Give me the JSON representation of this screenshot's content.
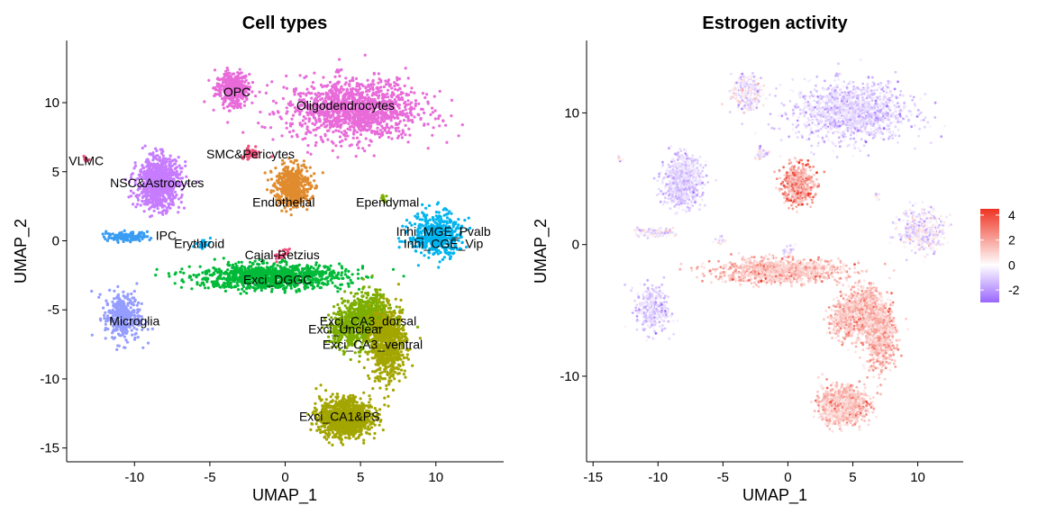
{
  "chart_data": [
    {
      "type": "scatter",
      "title": "Cell types",
      "xlabel": "UMAP_1",
      "ylabel": "UMAP_2",
      "xlim": [
        -14.5,
        14.5
      ],
      "ylim": [
        -16,
        14.5
      ],
      "xticks": [
        -10,
        -5,
        0,
        5,
        10
      ],
      "yticks": [
        -15,
        -10,
        -5,
        0,
        5,
        10
      ],
      "legend": "none",
      "grid": false,
      "clusters": [
        {
          "label": "OPC",
          "color": "#E86BD9",
          "x": -3.5,
          "y": 11.0,
          "sx": 1.0,
          "sy": 1.1,
          "n": 420,
          "lx": -3.2,
          "ly": 10.8
        },
        {
          "label": "Oligodendrocytes",
          "color": "#E86BD9",
          "x": 4.5,
          "y": 9.5,
          "sx": 4.0,
          "sy": 2.0,
          "n": 1300,
          "lx": 4.0,
          "ly": 9.8
        },
        {
          "label": "SMC&Pericytes",
          "color": "#F0527F",
          "x": -2.3,
          "y": 6.3,
          "sx": 0.6,
          "sy": 0.4,
          "n": 50,
          "lx": -2.3,
          "ly": 6.3
        },
        {
          "label": "VLMC",
          "color": "#F0527F",
          "x": -13.2,
          "y": 6.0,
          "sx": 0.2,
          "sy": 0.2,
          "n": 8,
          "lx": -13.2,
          "ly": 5.8
        },
        {
          "label": "NSC&Astrocytes",
          "color": "#C77CFF",
          "x": -8.4,
          "y": 4.2,
          "sx": 1.3,
          "sy": 1.6,
          "n": 900,
          "lx": -8.5,
          "ly": 4.2
        },
        {
          "label": "Endothelial",
          "color": "#E08B2E",
          "x": 0.5,
          "y": 4.0,
          "sx": 1.1,
          "sy": 1.4,
          "n": 480,
          "lx": -0.1,
          "ly": 2.8
        },
        {
          "label": "Ependymal",
          "color": "#7CAE00",
          "x": 6.5,
          "y": 3.0,
          "sx": 0.3,
          "sy": 0.3,
          "n": 10,
          "lx": 6.8,
          "ly": 2.8
        },
        {
          "label": "IPC",
          "color": "#3A9CF2",
          "x": -10.5,
          "y": 0.3,
          "sx": 1.2,
          "sy": 0.3,
          "n": 140,
          "lx": -7.9,
          "ly": 0.4
        },
        {
          "label": "Erythroid",
          "color": "#00B0F6",
          "x": -5.5,
          "y": -0.2,
          "sx": 0.5,
          "sy": 0.3,
          "n": 20,
          "lx": -5.7,
          "ly": -0.2
        },
        {
          "label": "Cajal-Retzius",
          "color": "#F0527F",
          "x": -0.2,
          "y": -1.0,
          "sx": 0.5,
          "sy": 0.4,
          "n": 25,
          "lx": -0.2,
          "ly": -1.0
        },
        {
          "label": "Exci_DGGC",
          "color": "#00BA38",
          "x": -1.0,
          "y": -2.6,
          "sx": 4.5,
          "sy": 0.8,
          "n": 1100,
          "lx": -0.5,
          "ly": -2.8
        },
        {
          "label": "Inhi_MGE_Pvalb",
          "color": "#00B4EF",
          "x": 10.0,
          "y": 0.5,
          "sx": 1.6,
          "sy": 1.5,
          "n": 380,
          "lx": 10.5,
          "ly": 0.7
        },
        {
          "label": "Inhi_CGE_Vip",
          "color": "#00B4EF",
          "x": 10.5,
          "y": 0.0,
          "sx": 1.0,
          "sy": 1.0,
          "n": 100,
          "lx": 10.5,
          "ly": -0.2
        },
        {
          "label": "Microglia",
          "color": "#959DFF",
          "x": -10.8,
          "y": -5.5,
          "sx": 1.1,
          "sy": 1.6,
          "n": 380,
          "lx": -10.0,
          "ly": -5.8
        },
        {
          "label": "Exci_CA3_dorsal",
          "color": "#7CAE00",
          "x": 5.5,
          "y": -5.5,
          "sx": 1.4,
          "sy": 1.5,
          "n": 700,
          "lx": 5.5,
          "ly": -5.8
        },
        {
          "label": "Exci_Unclear",
          "color": "#7CAE00",
          "x": 4.2,
          "y": -6.5,
          "sx": 1.3,
          "sy": 1.3,
          "n": 300,
          "lx": 4.0,
          "ly": -6.4
        },
        {
          "label": "Exci_CA3_ventral",
          "color": "#A3A500",
          "x": 6.8,
          "y": -7.5,
          "sx": 1.1,
          "sy": 2.4,
          "n": 700,
          "lx": 5.8,
          "ly": -7.5
        },
        {
          "label": "Exci_CA1&PS",
          "color": "#A3A500",
          "x": 4.0,
          "y": -12.8,
          "sx": 1.5,
          "sy": 1.2,
          "n": 1100,
          "lx": 3.6,
          "ly": -12.7
        }
      ]
    },
    {
      "type": "scatter",
      "title": "Estrogen activity",
      "xlabel": "UMAP_1",
      "ylabel": "UMAP_2",
      "xlim": [
        -15.5,
        13.5
      ],
      "ylim": [
        -16.5,
        15.5
      ],
      "xticks": [
        -15,
        -10,
        -5,
        0,
        5,
        10
      ],
      "yticks": [
        -10,
        0,
        10
      ],
      "legend": "right",
      "grid": false,
      "color_scale": {
        "min": -3,
        "max": 4.5,
        "ticks": [
          4,
          2,
          0,
          -2
        ],
        "low": "#9966FF",
        "mid": "#FFFFFF",
        "high": "#EE3322"
      }
    }
  ]
}
